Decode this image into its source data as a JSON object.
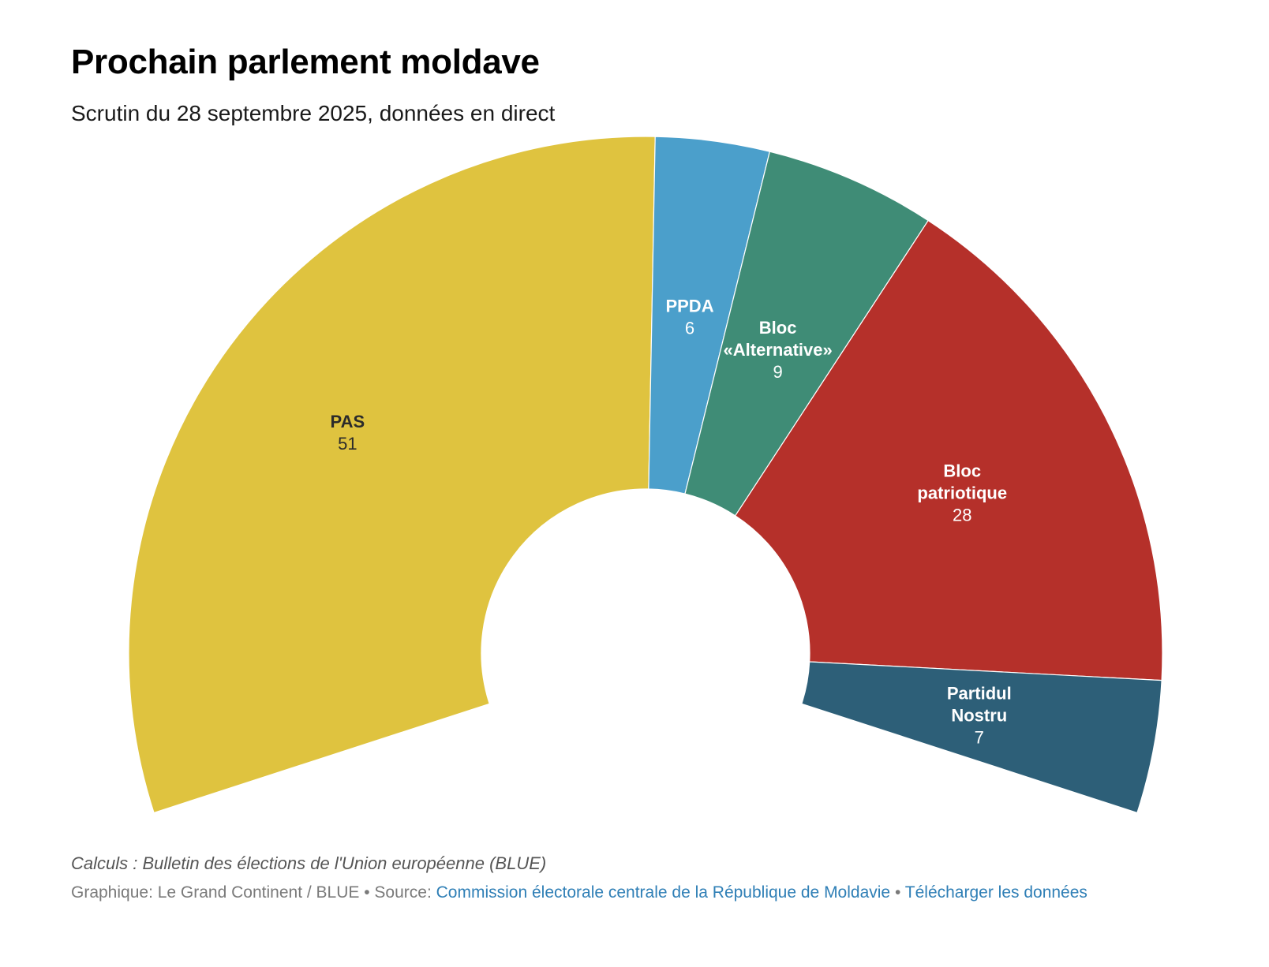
{
  "header": {
    "title": "Prochain parlement moldave",
    "subtitle": "Scrutin du 28 septembre 2025, données en direct"
  },
  "chart_data": {
    "type": "pie",
    "variant": "parliament-semicircle",
    "title": "Prochain parlement moldave",
    "subtitle": "Scrutin du 28 septembre 2025, données en direct",
    "total_seats": 101,
    "series": [
      {
        "name": "PAS",
        "label_lines": [
          "PAS"
        ],
        "value": 51,
        "color": "#dfc33f",
        "label_color": "dark"
      },
      {
        "name": "PPDA",
        "label_lines": [
          "PPDA"
        ],
        "value": 6,
        "color": "#4b9fcb",
        "label_color": "light"
      },
      {
        "name": "Bloc «Alternative»",
        "label_lines": [
          "Bloc",
          "«Alternative»"
        ],
        "value": 9,
        "color": "#3f8c76",
        "label_color": "light"
      },
      {
        "name": "Bloc patriotique",
        "label_lines": [
          "Bloc",
          "patriotique"
        ],
        "value": 28,
        "color": "#b5302a",
        "label_color": "light"
      },
      {
        "name": "Partidul Nostru",
        "label_lines": [
          "Partidul",
          "Nostru"
        ],
        "value": 7,
        "color": "#2d5f78",
        "label_color": "light"
      }
    ]
  },
  "footer": {
    "note": "Calculs : Bulletin des élections de l'Union européenne (BLUE)",
    "graphic_prefix": "Graphique: Le Grand Continent / BLUE • Source: ",
    "source_link": "Commission électorale centrale de la République de Moldavie",
    "separator": " • ",
    "download_link": "Télécharger les données"
  }
}
